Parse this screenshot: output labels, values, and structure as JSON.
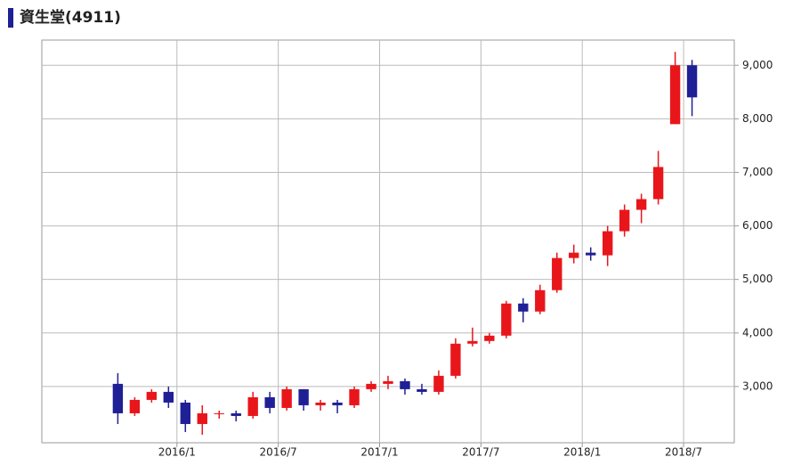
{
  "chart_data": {
    "type": "candlestick",
    "title": "資生堂(4911)",
    "x": [
      "2015/9",
      "2015/10",
      "2015/11",
      "2015/12",
      "2016/1",
      "2016/2",
      "2016/3",
      "2016/4",
      "2016/5",
      "2016/6",
      "2016/7",
      "2016/8",
      "2016/9",
      "2016/10",
      "2016/11",
      "2016/12",
      "2017/1",
      "2017/2",
      "2017/3",
      "2017/4",
      "2017/5",
      "2017/6",
      "2017/7",
      "2017/8",
      "2017/9",
      "2017/10",
      "2017/11",
      "2017/12",
      "2018/1",
      "2018/2",
      "2018/3",
      "2018/4",
      "2018/5",
      "2018/6",
      "2018/7"
    ],
    "open": [
      3050,
      2500,
      2750,
      2900,
      2700,
      2300,
      2500,
      2500,
      2450,
      2800,
      2600,
      2950,
      2650,
      2700,
      2650,
      2950,
      3050,
      3100,
      2950,
      2900,
      3200,
      3800,
      3850,
      3950,
      4550,
      4400,
      4800,
      5400,
      5500,
      5450,
      5900,
      6300,
      6500,
      7900,
      9000
    ],
    "high": [
      3250,
      2800,
      2950,
      3000,
      2750,
      2650,
      2550,
      2550,
      2900,
      2900,
      3000,
      2950,
      2750,
      2750,
      3000,
      3100,
      3200,
      3150,
      3050,
      3300,
      3900,
      4100,
      4000,
      4600,
      4650,
      4900,
      5500,
      5650,
      5600,
      6000,
      6400,
      6600,
      7400,
      9250,
      9100
    ],
    "low": [
      2300,
      2450,
      2700,
      2600,
      2150,
      2100,
      2400,
      2350,
      2400,
      2500,
      2550,
      2550,
      2550,
      2500,
      2600,
      2900,
      2950,
      2850,
      2850,
      2850,
      3150,
      3750,
      3800,
      3900,
      4200,
      4350,
      4750,
      5300,
      5350,
      5250,
      5800,
      6050,
      6400,
      7900,
      8050
    ],
    "close": [
      2500,
      2750,
      2900,
      2700,
      2300,
      2500,
      2500,
      2450,
      2800,
      2600,
      2950,
      2650,
      2700,
      2650,
      2950,
      3050,
      3100,
      2950,
      2900,
      3200,
      3800,
      3850,
      3950,
      4550,
      4400,
      4800,
      5400,
      5500,
      5450,
      5900,
      6300,
      6500,
      7100,
      9000,
      8400
    ],
    "up_color": "#e8161b",
    "down_color": "#1f1f96",
    "xlim": [
      "2015/5",
      "2018/10"
    ],
    "xticks": [
      "2016/1",
      "2016/7",
      "2017/1",
      "2017/7",
      "2018/1",
      "2018/7"
    ],
    "ylim": [
      1950,
      9470
    ],
    "yticks": [
      {
        "value": 3000,
        "label": "3,000"
      },
      {
        "value": 4000,
        "label": "4,000"
      },
      {
        "value": 5000,
        "label": "5,000"
      },
      {
        "value": 6000,
        "label": "6,000"
      },
      {
        "value": 7000,
        "label": "7,000"
      },
      {
        "value": 8000,
        "label": "8,000"
      },
      {
        "value": 9000,
        "label": "9,000"
      }
    ],
    "grid": true
  }
}
